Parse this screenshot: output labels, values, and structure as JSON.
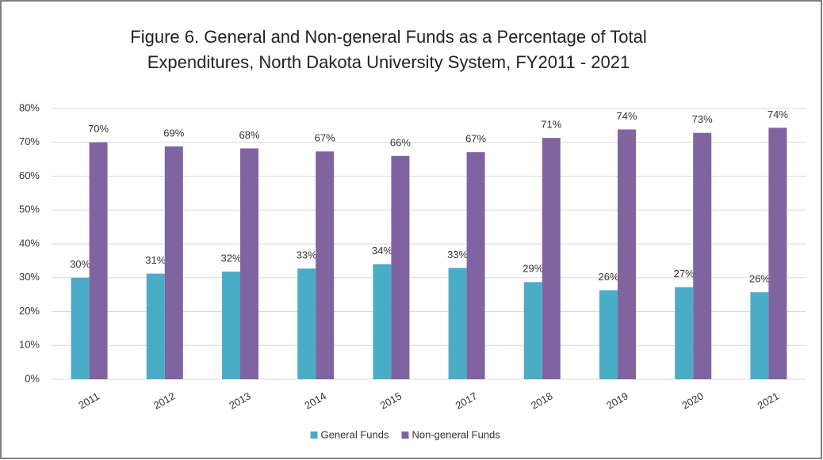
{
  "chart_data": {
    "type": "bar",
    "title": [
      "Figure 6. General and Non-general Funds as a Percentage of Total",
      "Expenditures, North Dakota University System, FY2011 - 2021"
    ],
    "categories": [
      "2011",
      "2012",
      "2013",
      "2014",
      "2015",
      "2017",
      "2018",
      "2019",
      "2020",
      "2021"
    ],
    "series": [
      {
        "name": "General Funds",
        "color": "#4bacc6",
        "values": [
          30,
          31.2,
          31.8,
          32.7,
          34,
          32.9,
          28.7,
          26.3,
          27.2,
          25.7
        ],
        "value_labels": [
          "30%",
          "31%",
          "32%",
          "33%",
          "34%",
          "33%",
          "29%",
          "26%",
          "27%",
          "26%"
        ]
      },
      {
        "name": "Non-general Funds",
        "color": "#8064a2",
        "values": [
          70,
          68.8,
          68.2,
          67.3,
          66,
          67.1,
          71.3,
          73.8,
          72.8,
          74.3
        ],
        "value_labels": [
          "70%",
          "69%",
          "68%",
          "67%",
          "66%",
          "67%",
          "71%",
          "74%",
          "73%",
          "74%"
        ]
      }
    ],
    "ylim": [
      0,
      80
    ],
    "yticks": [
      {
        "value": 0,
        "label": "0%"
      },
      {
        "value": 10,
        "label": "10%"
      },
      {
        "value": 20,
        "label": "20%"
      },
      {
        "value": 30,
        "label": "30%"
      },
      {
        "value": 40,
        "label": "40%"
      },
      {
        "value": 50,
        "label": "50%"
      },
      {
        "value": 60,
        "label": "60%"
      },
      {
        "value": 70,
        "label": "70%"
      },
      {
        "value": 80,
        "label": "80%"
      }
    ],
    "grid": true,
    "legend": "bottom"
  }
}
